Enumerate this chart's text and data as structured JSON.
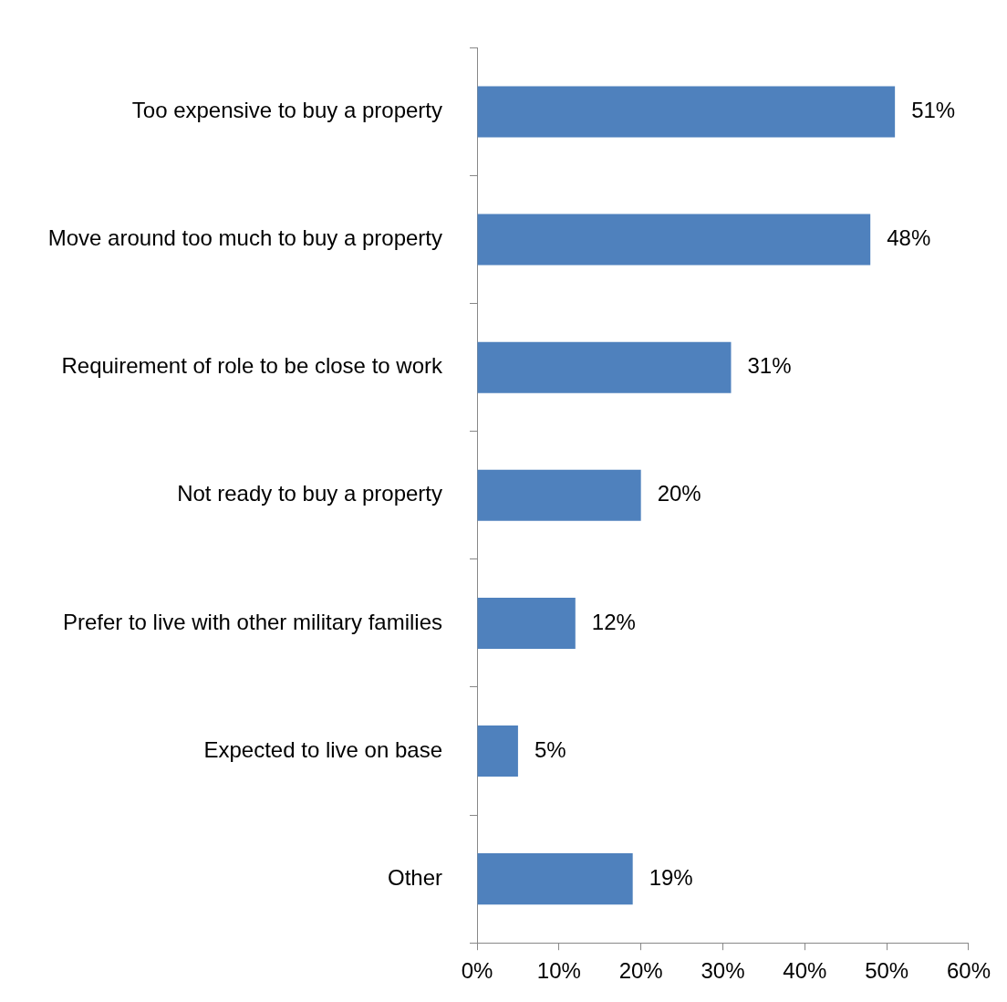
{
  "chart_data": {
    "type": "bar",
    "orientation": "horizontal",
    "categories": [
      "Too expensive to buy a property",
      "Move around too much to buy a property",
      "Requirement of role to be close to work",
      "Not ready to buy a property",
      "Prefer to live with other military families",
      "Expected to live on base",
      "Other"
    ],
    "values": [
      51,
      48,
      31,
      20,
      12,
      5,
      19
    ],
    "value_labels": [
      "51%",
      "48%",
      "31%",
      "20%",
      "12%",
      "5%",
      "19%"
    ],
    "color": "#4f81bd",
    "xlim": [
      0,
      60
    ],
    "xticks": [
      {
        "value": 0,
        "label": "0%"
      },
      {
        "value": 10,
        "label": "10%"
      },
      {
        "value": 20,
        "label": "20%"
      },
      {
        "value": 30,
        "label": "30%"
      },
      {
        "value": 40,
        "label": "40%"
      },
      {
        "value": 50,
        "label": "50%"
      },
      {
        "value": 60,
        "label": "60%"
      }
    ],
    "grid": false,
    "legend": false
  }
}
